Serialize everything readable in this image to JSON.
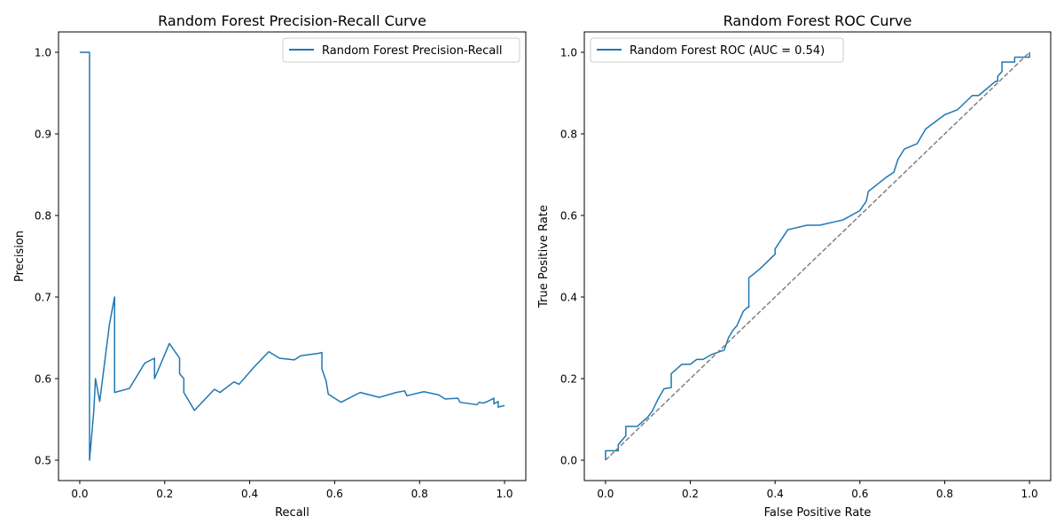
{
  "chart_data": [
    {
      "type": "line",
      "title": "Random Forest Precision-Recall Curve",
      "xlabel": "Recall",
      "ylabel": "Precision",
      "xlim": [
        -0.05,
        1.05
      ],
      "ylim": [
        0.475,
        1.025
      ],
      "xticks": [
        0.0,
        0.2,
        0.4,
        0.6,
        0.8,
        1.0
      ],
      "xtick_labels": [
        "0.0",
        "0.2",
        "0.4",
        "0.6",
        "0.8",
        "1.0"
      ],
      "yticks": [
        0.5,
        0.6,
        0.7,
        0.8,
        0.9,
        1.0
      ],
      "ytick_labels": [
        "0.5",
        "0.6",
        "0.7",
        "0.8",
        "0.9",
        "1.0"
      ],
      "grid": false,
      "legend_position": "upper right",
      "series": [
        {
          "name": "Random Forest Precision-Recall",
          "color": "#1f77b4",
          "style": "solid",
          "x": [
            0.0,
            0.023,
            0.023,
            0.033,
            0.037,
            0.047,
            0.07,
            0.082,
            0.082,
            0.117,
            0.153,
            0.176,
            0.176,
            0.211,
            0.235,
            0.235,
            0.245,
            0.245,
            0.27,
            0.317,
            0.33,
            0.363,
            0.375,
            0.41,
            0.445,
            0.47,
            0.505,
            0.52,
            0.562,
            0.57,
            0.57,
            0.58,
            0.585,
            0.615,
            0.66,
            0.705,
            0.745,
            0.765,
            0.77,
            0.81,
            0.845,
            0.86,
            0.89,
            0.895,
            0.935,
            0.94,
            0.95,
            0.96,
            0.975,
            0.975,
            0.985,
            0.985,
            1.0
          ],
          "y": [
            1.0,
            1.0,
            0.5,
            0.56,
            0.6,
            0.572,
            0.667,
            0.7,
            0.583,
            0.588,
            0.619,
            0.625,
            0.6,
            0.643,
            0.625,
            0.606,
            0.6,
            0.583,
            0.561,
            0.587,
            0.583,
            0.596,
            0.593,
            0.614,
            0.633,
            0.625,
            0.623,
            0.628,
            0.631,
            0.632,
            0.612,
            0.597,
            0.581,
            0.571,
            0.583,
            0.577,
            0.583,
            0.585,
            0.579,
            0.584,
            0.58,
            0.575,
            0.576,
            0.571,
            0.568,
            0.571,
            0.57,
            0.572,
            0.576,
            0.569,
            0.572,
            0.565,
            0.567
          ]
        }
      ]
    },
    {
      "type": "line",
      "title": "Random Forest ROC Curve",
      "xlabel": "False Positive Rate",
      "ylabel": "True Positive Rate",
      "xlim": [
        -0.05,
        1.05
      ],
      "ylim": [
        -0.05,
        1.05
      ],
      "xticks": [
        0.0,
        0.2,
        0.4,
        0.6,
        0.8,
        1.0
      ],
      "xtick_labels": [
        "0.0",
        "0.2",
        "0.4",
        "0.6",
        "0.8",
        "1.0"
      ],
      "yticks": [
        0.0,
        0.2,
        0.4,
        0.6,
        0.8,
        1.0
      ],
      "ytick_labels": [
        "0.0",
        "0.2",
        "0.4",
        "0.6",
        "0.8",
        "1.0"
      ],
      "grid": false,
      "legend_position": "upper left",
      "series": [
        {
          "name": "Random Forest ROC (AUC = 0.54)",
          "color": "#1f77b4",
          "style": "solid",
          "x": [
            0.0,
            0.0,
            0.03,
            0.03,
            0.048,
            0.048,
            0.075,
            0.1,
            0.11,
            0.125,
            0.138,
            0.155,
            0.155,
            0.18,
            0.2,
            0.215,
            0.23,
            0.25,
            0.28,
            0.29,
            0.3,
            0.31,
            0.325,
            0.335,
            0.338,
            0.338,
            0.35,
            0.365,
            0.4,
            0.4,
            0.43,
            0.475,
            0.505,
            0.56,
            0.6,
            0.615,
            0.62,
            0.66,
            0.68,
            0.69,
            0.705,
            0.735,
            0.755,
            0.8,
            0.83,
            0.865,
            0.88,
            0.92,
            0.925,
            0.925,
            0.935,
            0.935,
            0.965,
            0.965,
            0.99,
            1.0,
            1.0
          ],
          "y": [
            0.0,
            0.023,
            0.023,
            0.038,
            0.06,
            0.083,
            0.083,
            0.106,
            0.12,
            0.152,
            0.175,
            0.178,
            0.212,
            0.235,
            0.235,
            0.247,
            0.247,
            0.259,
            0.27,
            0.3,
            0.318,
            0.33,
            0.365,
            0.375,
            0.375,
            0.447,
            0.457,
            0.47,
            0.505,
            0.518,
            0.565,
            0.576,
            0.576,
            0.589,
            0.612,
            0.635,
            0.659,
            0.692,
            0.706,
            0.738,
            0.763,
            0.776,
            0.812,
            0.847,
            0.859,
            0.894,
            0.894,
            0.929,
            0.929,
            0.941,
            0.953,
            0.976,
            0.976,
            0.988,
            0.988,
            0.988,
            1.0
          ]
        },
        {
          "name": "",
          "color": "#808080",
          "style": "dashed",
          "x": [
            0.0,
            1.0
          ],
          "y": [
            0.0,
            1.0
          ]
        }
      ]
    }
  ]
}
